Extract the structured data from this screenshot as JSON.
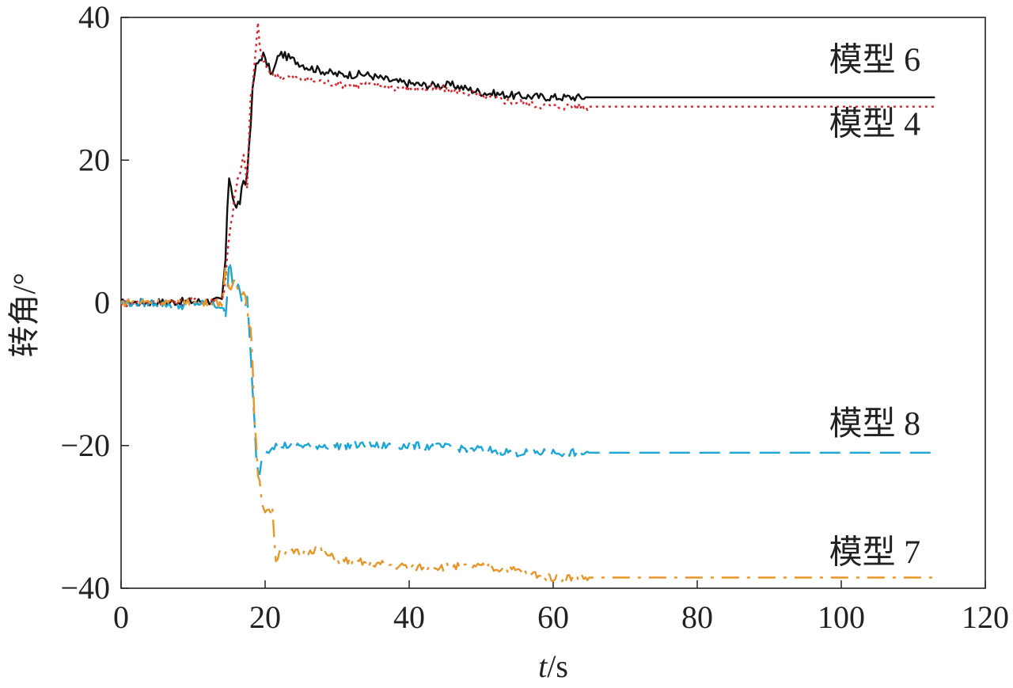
{
  "chart_data": {
    "type": "line",
    "xlabel_var": "t",
    "xlabel_unit": "/s",
    "ylabel": "转角/°",
    "xlim": [
      0,
      120
    ],
    "ylim": [
      -40,
      40
    ],
    "xticks": [
      "0",
      "20",
      "40",
      "60",
      "80",
      "100",
      "120"
    ],
    "yticks": [
      "40",
      "20",
      "0",
      "−20",
      "−40"
    ],
    "grid": false,
    "legend": "inline labels at right end of lines",
    "series": [
      {
        "name": "模型 6",
        "color": "#111111",
        "dash": "solid",
        "label_at": [
          111,
          32.5
        ],
        "points": [
          [
            0,
            0
          ],
          [
            5,
            0.1
          ],
          [
            10,
            0.2
          ],
          [
            14,
            0.3
          ],
          [
            14.5,
            6
          ],
          [
            15,
            18
          ],
          [
            16,
            13
          ],
          [
            17,
            16
          ],
          [
            17.5,
            18
          ],
          [
            18,
            26
          ],
          [
            18.5,
            32
          ],
          [
            19,
            33.5
          ],
          [
            19.5,
            35
          ],
          [
            21,
            32
          ],
          [
            22,
            35
          ],
          [
            24,
            34
          ],
          [
            26,
            33
          ],
          [
            28,
            32.5
          ],
          [
            30,
            32
          ],
          [
            34,
            32
          ],
          [
            38,
            31
          ],
          [
            42,
            30.5
          ],
          [
            46,
            30.5
          ],
          [
            50,
            29.5
          ],
          [
            55,
            29
          ],
          [
            60,
            28.8
          ],
          [
            70,
            28.8
          ],
          [
            80,
            28.8
          ],
          [
            100,
            28.8
          ],
          [
            113,
            28.8
          ]
        ]
      },
      {
        "name": "模型 4",
        "color": "#d8232a",
        "dash": "dotted",
        "label_at": [
          111,
          23.5
        ],
        "points": [
          [
            0,
            0
          ],
          [
            5,
            0
          ],
          [
            10,
            0.2
          ],
          [
            14,
            0.5
          ],
          [
            14.5,
            3
          ],
          [
            15,
            10
          ],
          [
            16,
            16
          ],
          [
            17,
            20
          ],
          [
            17.5,
            17
          ],
          [
            18,
            28
          ],
          [
            18.5,
            33
          ],
          [
            19,
            39
          ],
          [
            19.5,
            34
          ],
          [
            21,
            32
          ],
          [
            24,
            31.5
          ],
          [
            28,
            31
          ],
          [
            32,
            30.5
          ],
          [
            36,
            30.5
          ],
          [
            40,
            30
          ],
          [
            44,
            30
          ],
          [
            48,
            29.5
          ],
          [
            52,
            28.5
          ],
          [
            56,
            28
          ],
          [
            60,
            27.5
          ],
          [
            70,
            27.5
          ],
          [
            80,
            27.5
          ],
          [
            100,
            27.5
          ],
          [
            113,
            27.5
          ]
        ]
      },
      {
        "name": "模型 8",
        "color": "#1aa6d6",
        "dash": "longdash",
        "label_at": [
          111,
          -18.5
        ],
        "points": [
          [
            0,
            0
          ],
          [
            5,
            0
          ],
          [
            8,
            -0.5
          ],
          [
            10,
            0
          ],
          [
            14,
            -0.5
          ],
          [
            14.5,
            -3
          ],
          [
            15,
            7
          ],
          [
            15.5,
            3
          ],
          [
            16,
            2
          ],
          [
            17,
            0
          ],
          [
            17.5,
            0.5
          ],
          [
            18,
            -8
          ],
          [
            18.5,
            -17
          ],
          [
            19,
            -24
          ],
          [
            19.5,
            -22
          ],
          [
            20,
            -21
          ],
          [
            21,
            -20
          ],
          [
            24,
            -20
          ],
          [
            30,
            -20
          ],
          [
            40,
            -20
          ],
          [
            50,
            -20.5
          ],
          [
            55,
            -21
          ],
          [
            60,
            -21
          ],
          [
            70,
            -21
          ],
          [
            80,
            -21
          ],
          [
            100,
            -21
          ],
          [
            113,
            -21
          ]
        ]
      },
      {
        "name": "模型 7",
        "color": "#e8962a",
        "dash": "dashdot",
        "label_at": [
          111,
          -36.5
        ],
        "points": [
          [
            0,
            0
          ],
          [
            5,
            0.2
          ],
          [
            10,
            0
          ],
          [
            14,
            0
          ],
          [
            14.5,
            4
          ],
          [
            15,
            1
          ],
          [
            15.5,
            3
          ],
          [
            16,
            3
          ],
          [
            17,
            1.5
          ],
          [
            17.5,
            0
          ],
          [
            18,
            -4
          ],
          [
            18.5,
            -15
          ],
          [
            19,
            -25
          ],
          [
            20,
            -29
          ],
          [
            21,
            -29
          ],
          [
            21.5,
            -36
          ],
          [
            22,
            -35
          ],
          [
            25,
            -35
          ],
          [
            27,
            -34.5
          ],
          [
            30,
            -36
          ],
          [
            35,
            -36.5
          ],
          [
            40,
            -37
          ],
          [
            45,
            -37
          ],
          [
            50,
            -37
          ],
          [
            55,
            -37.5
          ],
          [
            60,
            -38.5
          ],
          [
            70,
            -38.5
          ],
          [
            80,
            -38.5
          ],
          [
            100,
            -38.5
          ],
          [
            113,
            -38.5
          ]
        ]
      }
    ]
  }
}
